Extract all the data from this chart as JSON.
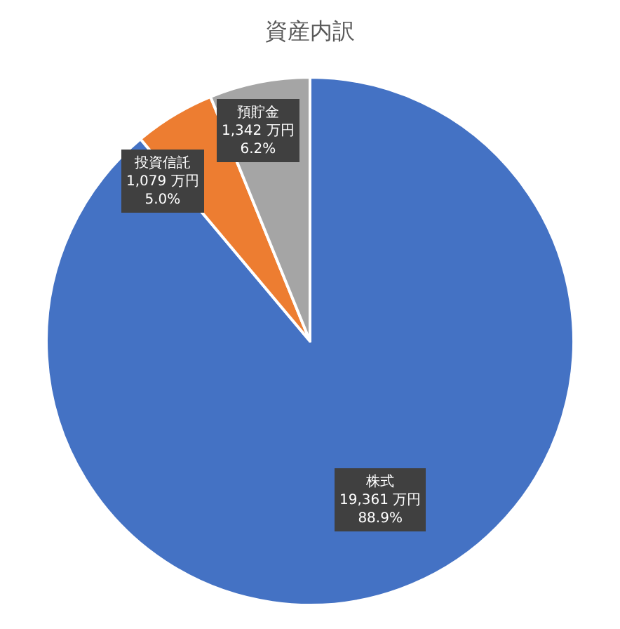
{
  "chart_data": {
    "type": "pie",
    "title": "資産内訳",
    "categories": [
      "株式",
      "投資信託",
      "預貯金"
    ],
    "values": [
      19361,
      1079,
      1342
    ],
    "colors": [
      "#4472c4",
      "#ed7d31",
      "#a5a5a5"
    ],
    "value_labels": [
      "19,361 万円\n88.9%",
      "1,079 万円\n5.0%",
      "1,342 万円\n6.2%"
    ],
    "legend": false
  }
}
